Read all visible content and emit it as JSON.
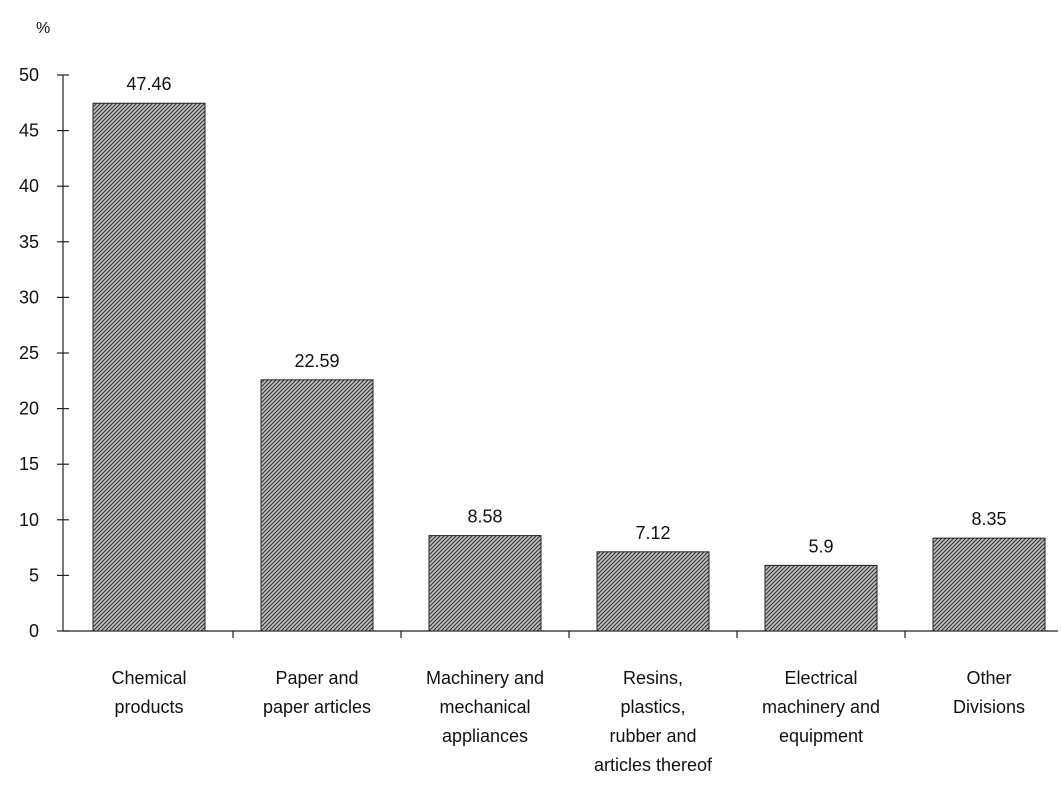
{
  "chart_data": {
    "type": "bar",
    "ylabel": "%",
    "ylim": [
      0,
      50
    ],
    "yticks": [
      "0",
      "5",
      "10",
      "15",
      "20",
      "25",
      "30",
      "35",
      "40",
      "45",
      "50"
    ],
    "categories": [
      "Chemical products",
      "Paper and paper articles",
      "Machinery and mechanical appliances",
      "Resins, plastics, rubber and articles thereof",
      "Electrical machinery and equipment",
      "Other Divisions"
    ],
    "category_lines": [
      [
        "Chemical",
        "products"
      ],
      [
        "Paper and",
        "paper articles"
      ],
      [
        "Machinery and",
        "mechanical",
        "appliances"
      ],
      [
        "Resins,",
        "plastics,",
        "rubber and",
        "articles thereof"
      ],
      [
        "Electrical",
        "machinery and",
        "equipment"
      ],
      [
        "Other",
        "Divisions"
      ]
    ],
    "values": [
      47.46,
      22.59,
      8.58,
      7.12,
      5.9,
      8.35
    ],
    "value_labels": [
      "47.46",
      "22.59",
      "8.58",
      "7.12",
      "5.9",
      "8.35"
    ],
    "bar_color": "#777777",
    "grid": false
  }
}
